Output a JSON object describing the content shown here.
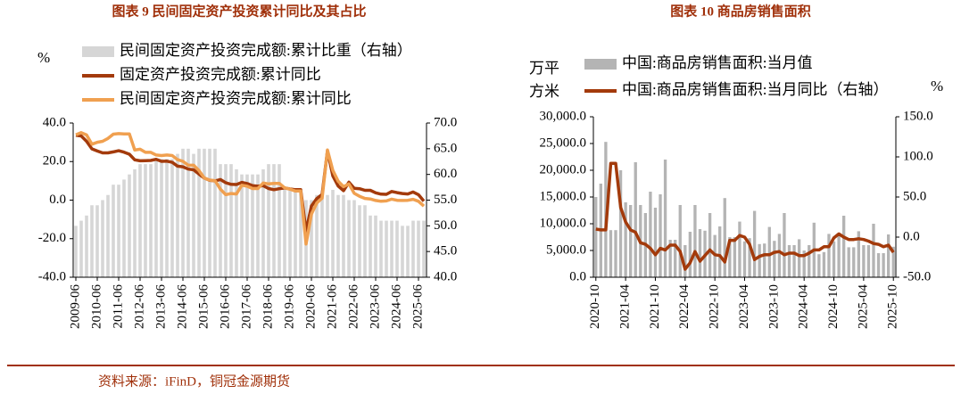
{
  "chart_data": [
    {
      "type": "combo",
      "title": "图表 9  民间固定资产投资累计同比及其占比",
      "y_unit": "%",
      "categories": [
        "2009-06",
        null,
        null,
        null,
        "2010-06",
        null,
        null,
        null,
        "2011-06",
        null,
        null,
        null,
        "2012-06",
        null,
        null,
        null,
        "2013-06",
        null,
        null,
        null,
        "2014-06",
        null,
        null,
        null,
        "2015-06",
        null,
        null,
        null,
        "2016-06",
        null,
        null,
        null,
        "2017-06",
        null,
        null,
        null,
        "2018-06",
        null,
        null,
        null,
        "2019-06",
        null,
        null,
        null,
        "2020-06",
        null,
        null,
        null,
        "2021-06",
        null,
        null,
        null,
        "2022-06",
        null,
        null,
        null,
        "2023-06",
        null,
        null,
        null,
        "2024-06",
        null,
        null,
        null,
        "2025-06",
        null
      ],
      "ylim": [
        -40,
        40
      ],
      "yticks": [
        {
          "value": -40,
          "label": "-40.0"
        },
        {
          "value": -20,
          "label": "-20.0"
        },
        {
          "value": 0,
          "label": "0.0"
        },
        {
          "value": 20,
          "label": "20.0"
        },
        {
          "value": 40,
          "label": "40.0"
        }
      ],
      "y2lim": [
        40,
        70
      ],
      "y2ticks": [
        {
          "value": 40,
          "label": "40.0"
        },
        {
          "value": 45,
          "label": "45.0"
        },
        {
          "value": 50,
          "label": "50.0"
        },
        {
          "value": 55,
          "label": "55.0"
        },
        {
          "value": 60,
          "label": "60.0"
        },
        {
          "value": 65,
          "label": "65.0"
        },
        {
          "value": 70,
          "label": "70.0"
        }
      ],
      "series": [
        {
          "name": "民间固定资产投资完成额:累计比重（右轴）",
          "type": "bar",
          "axis": "y2",
          "color": "#d6d6d6",
          "values": [
            50,
            51,
            52,
            54,
            54,
            55,
            56,
            58,
            58,
            59,
            60,
            61,
            62,
            62,
            62,
            63,
            63,
            63,
            63,
            64,
            65,
            65,
            64,
            65,
            65,
            65,
            65,
            62,
            62,
            62,
            61,
            60,
            60,
            60,
            60,
            61,
            62,
            62,
            62,
            57,
            57,
            57,
            57,
            55,
            55,
            56,
            56,
            56,
            57,
            56,
            56,
            55,
            55,
            54,
            54,
            52,
            52,
            51,
            51,
            51,
            51,
            50,
            50,
            51,
            51,
            51
          ]
        },
        {
          "name": "固定资产投资完成额:累计同比",
          "type": "line",
          "axis": "y",
          "color": "#a33a0b",
          "values": [
            33.6,
            33.3,
            30.5,
            26.6,
            25.5,
            24.5,
            24.5,
            25.0,
            25.6,
            24.9,
            23.8,
            20.9,
            20.4,
            20.5,
            20.6,
            21.2,
            20.1,
            20.2,
            19.6,
            17.6,
            17.3,
            16.1,
            15.7,
            13.5,
            11.4,
            10.3,
            10.0,
            10.7,
            9.0,
            8.2,
            8.1,
            9.2,
            8.6,
            7.5,
            7.2,
            7.5,
            6.0,
            5.4,
            5.9,
            6.3,
            5.8,
            5.4,
            5.4,
            -16.1,
            -3.1,
            0.8,
            2.9,
            25.6,
            12.6,
            7.3,
            4.9,
            9.3,
            6.1,
            5.9,
            5.1,
            5.1,
            3.8,
            3.1,
            3.0,
            4.5,
            3.9,
            3.4,
            3.2,
            4.2,
            2.8,
            -0.5
          ]
        },
        {
          "name": "民间固定资产投资完成额:累计同比",
          "type": "line",
          "axis": "y",
          "color": "#f0a050",
          "values": [
            33.9,
            35.0,
            33.8,
            29.0,
            30.0,
            30.5,
            32.0,
            34.2,
            34.5,
            34.3,
            34.3,
            26.0,
            26.4,
            24.8,
            24.8,
            23.4,
            23.1,
            23.4,
            23.1,
            21.0,
            20.1,
            18.1,
            18.1,
            15.3,
            11.4,
            10.4,
            10.1,
            5.7,
            2.8,
            3.4,
            3.2,
            7.7,
            7.2,
            6.0,
            6.0,
            8.9,
            8.4,
            8.7,
            8.7,
            6.4,
            5.7,
            4.7,
            4.7,
            -22.8,
            -7.3,
            -1.5,
            1.0,
            26.0,
            15.4,
            9.8,
            7.0,
            8.4,
            3.5,
            2.0,
            0.9,
            0.6,
            -0.2,
            -0.6,
            -0.4,
            0.5,
            -0.1,
            -0.2,
            -0.1,
            0.4,
            -0.6,
            -3.1
          ]
        }
      ]
    },
    {
      "type": "combo",
      "title": "图表 10  商品房销售面积",
      "y_unit_lines": [
        "万平",
        "方米"
      ],
      "y2_unit": "%",
      "categories": [
        "2020-10",
        null,
        null,
        null,
        null,
        null,
        "2021-04",
        null,
        null,
        null,
        null,
        null,
        "2021-10",
        null,
        null,
        null,
        null,
        null,
        "2022-04",
        null,
        null,
        null,
        null,
        null,
        "2022-10",
        null,
        null,
        null,
        null,
        null,
        "2023-04",
        null,
        null,
        null,
        null,
        null,
        "2023-10",
        null,
        null,
        null,
        null,
        null,
        "2024-04",
        null,
        null,
        null,
        null,
        null,
        "2024-10",
        null,
        null,
        null,
        null,
        null,
        "2025-04",
        null,
        null,
        null,
        null,
        null,
        "2025-10"
      ],
      "ylim": [
        0,
        30000
      ],
      "yticks": [
        {
          "value": 0,
          "label": "0.0"
        },
        {
          "value": 5000,
          "label": "5,000.0"
        },
        {
          "value": 10000,
          "label": "10,000.0"
        },
        {
          "value": 15000,
          "label": "15,000.0"
        },
        {
          "value": 20000,
          "label": "20,000.0"
        },
        {
          "value": 25000,
          "label": "25,000.0"
        },
        {
          "value": 30000,
          "label": "30,000.0"
        }
      ],
      "y2lim": [
        -50,
        150
      ],
      "y2ticks": [
        {
          "value": -50,
          "label": "-50.0"
        },
        {
          "value": 0,
          "label": "0.0"
        },
        {
          "value": 50,
          "label": "50.0"
        },
        {
          "value": 100,
          "label": "100.0"
        },
        {
          "value": 150,
          "label": "150.0"
        }
      ],
      "series": [
        {
          "name": "中国:商品房销售面积:当月值",
          "type": "bar",
          "axis": "y",
          "color": "#b4b4b4",
          "values": [
            15000,
            17500,
            25300,
            8800,
            8800,
            20000,
            14000,
            13500,
            21500,
            13500,
            12000,
            16000,
            13000,
            15500,
            22000,
            7000,
            7000,
            13500,
            6000,
            8500,
            13500,
            9000,
            8700,
            12000,
            7900,
            9500,
            14800,
            7500,
            7500,
            10400,
            6700,
            7300,
            12400,
            6200,
            6300,
            9400,
            6800,
            8100,
            12000,
            6000,
            6000,
            7100,
            5000,
            6000,
            10200,
            4300,
            4700,
            8100,
            6700,
            7800,
            11500,
            5600,
            5600,
            8600,
            6000,
            6000,
            10000,
            4500,
            4500,
            8000,
            5700
          ]
        },
        {
          "name": "中国:商品房销售面积:当月同比（右轴）",
          "type": "line",
          "axis": "y2",
          "color": "#a33a0b",
          "values": [
            10,
            9,
            9,
            92,
            92,
            37,
            19,
            9,
            6,
            -7,
            -9,
            -14,
            -22,
            -14,
            -16,
            -10,
            -10,
            -18,
            -40,
            -32,
            -18,
            -30,
            -23,
            -16,
            -22,
            -23,
            -31,
            -4,
            -4,
            2,
            0,
            -9,
            -28,
            -24,
            -22,
            -22,
            -19,
            -18,
            -22,
            -20,
            -20,
            -23,
            -23,
            -20,
            -16,
            -16,
            -12,
            -12,
            -1,
            4,
            0,
            -3,
            -3,
            -2,
            -3,
            -5,
            -8,
            -9,
            -12,
            -10,
            -19
          ]
        }
      ]
    }
  ],
  "source": "资料来源：iFinD，铜冠金源期货"
}
